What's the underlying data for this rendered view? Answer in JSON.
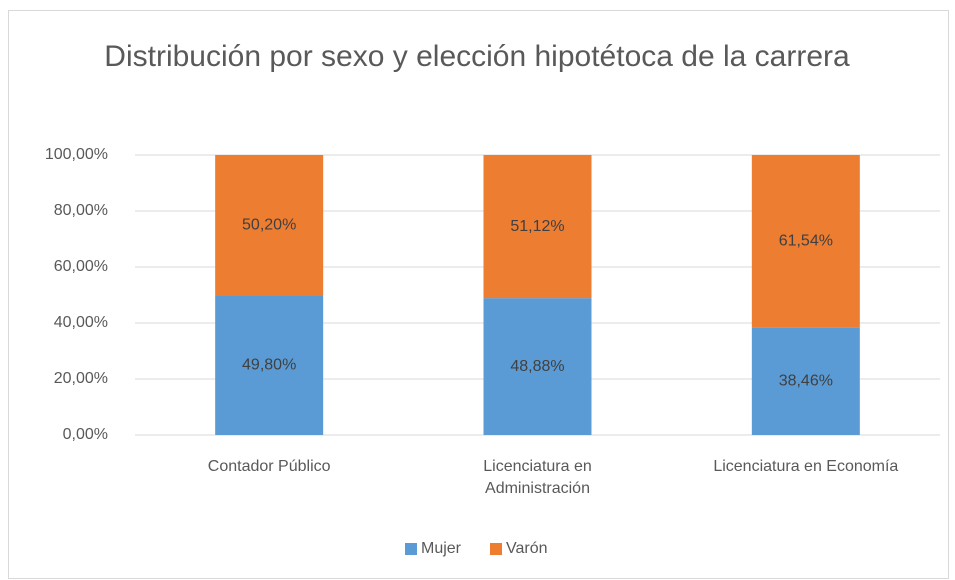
{
  "chart_data": {
    "type": "stacked_bar",
    "title": "Distribución por sexo y elección hipotétoca de la carrera",
    "categories": [
      "Contador Público",
      "Licenciatura en Administración",
      "Licenciatura en Economía"
    ],
    "series": [
      {
        "name": "Mujer",
        "color": "#5b9bd5",
        "values": [
          49.8,
          48.88,
          38.46
        ],
        "value_labels": [
          "49,80%",
          "48,88%",
          "38,46%"
        ]
      },
      {
        "name": "Varón",
        "color": "#ed7d31",
        "values": [
          50.2,
          51.12,
          61.54
        ],
        "value_labels": [
          "50,20%",
          "51,12%",
          "61,54%"
        ]
      }
    ],
    "ylim": [
      0,
      100
    ],
    "yticks": [
      {
        "value": 0,
        "label": "0,00%"
      },
      {
        "value": 20,
        "label": "20,00%"
      },
      {
        "value": 40,
        "label": "40,00%"
      },
      {
        "value": 60,
        "label": "60,00%"
      },
      {
        "value": 80,
        "label": "80,00%"
      },
      {
        "value": 100,
        "label": "100,00%"
      }
    ],
    "grid": true,
    "legend": "bottom"
  }
}
